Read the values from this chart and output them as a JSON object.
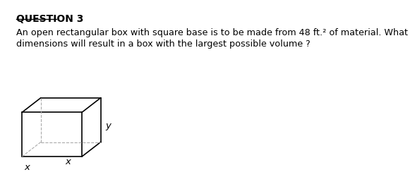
{
  "title": "QUESTION 3",
  "body_line1": "An open rectangular box with square base is to be made from 48 ft.² of material. What",
  "body_line2": "dimensions will result in a box with the largest possible volume ?",
  "bg_color": "#ffffff",
  "box_color": "#000000",
  "dashed_color": "#aaaaaa",
  "label_x1": "x",
  "label_x2": "x",
  "label_y": "y",
  "title_fontsize": 10,
  "body_fontsize": 9.2
}
